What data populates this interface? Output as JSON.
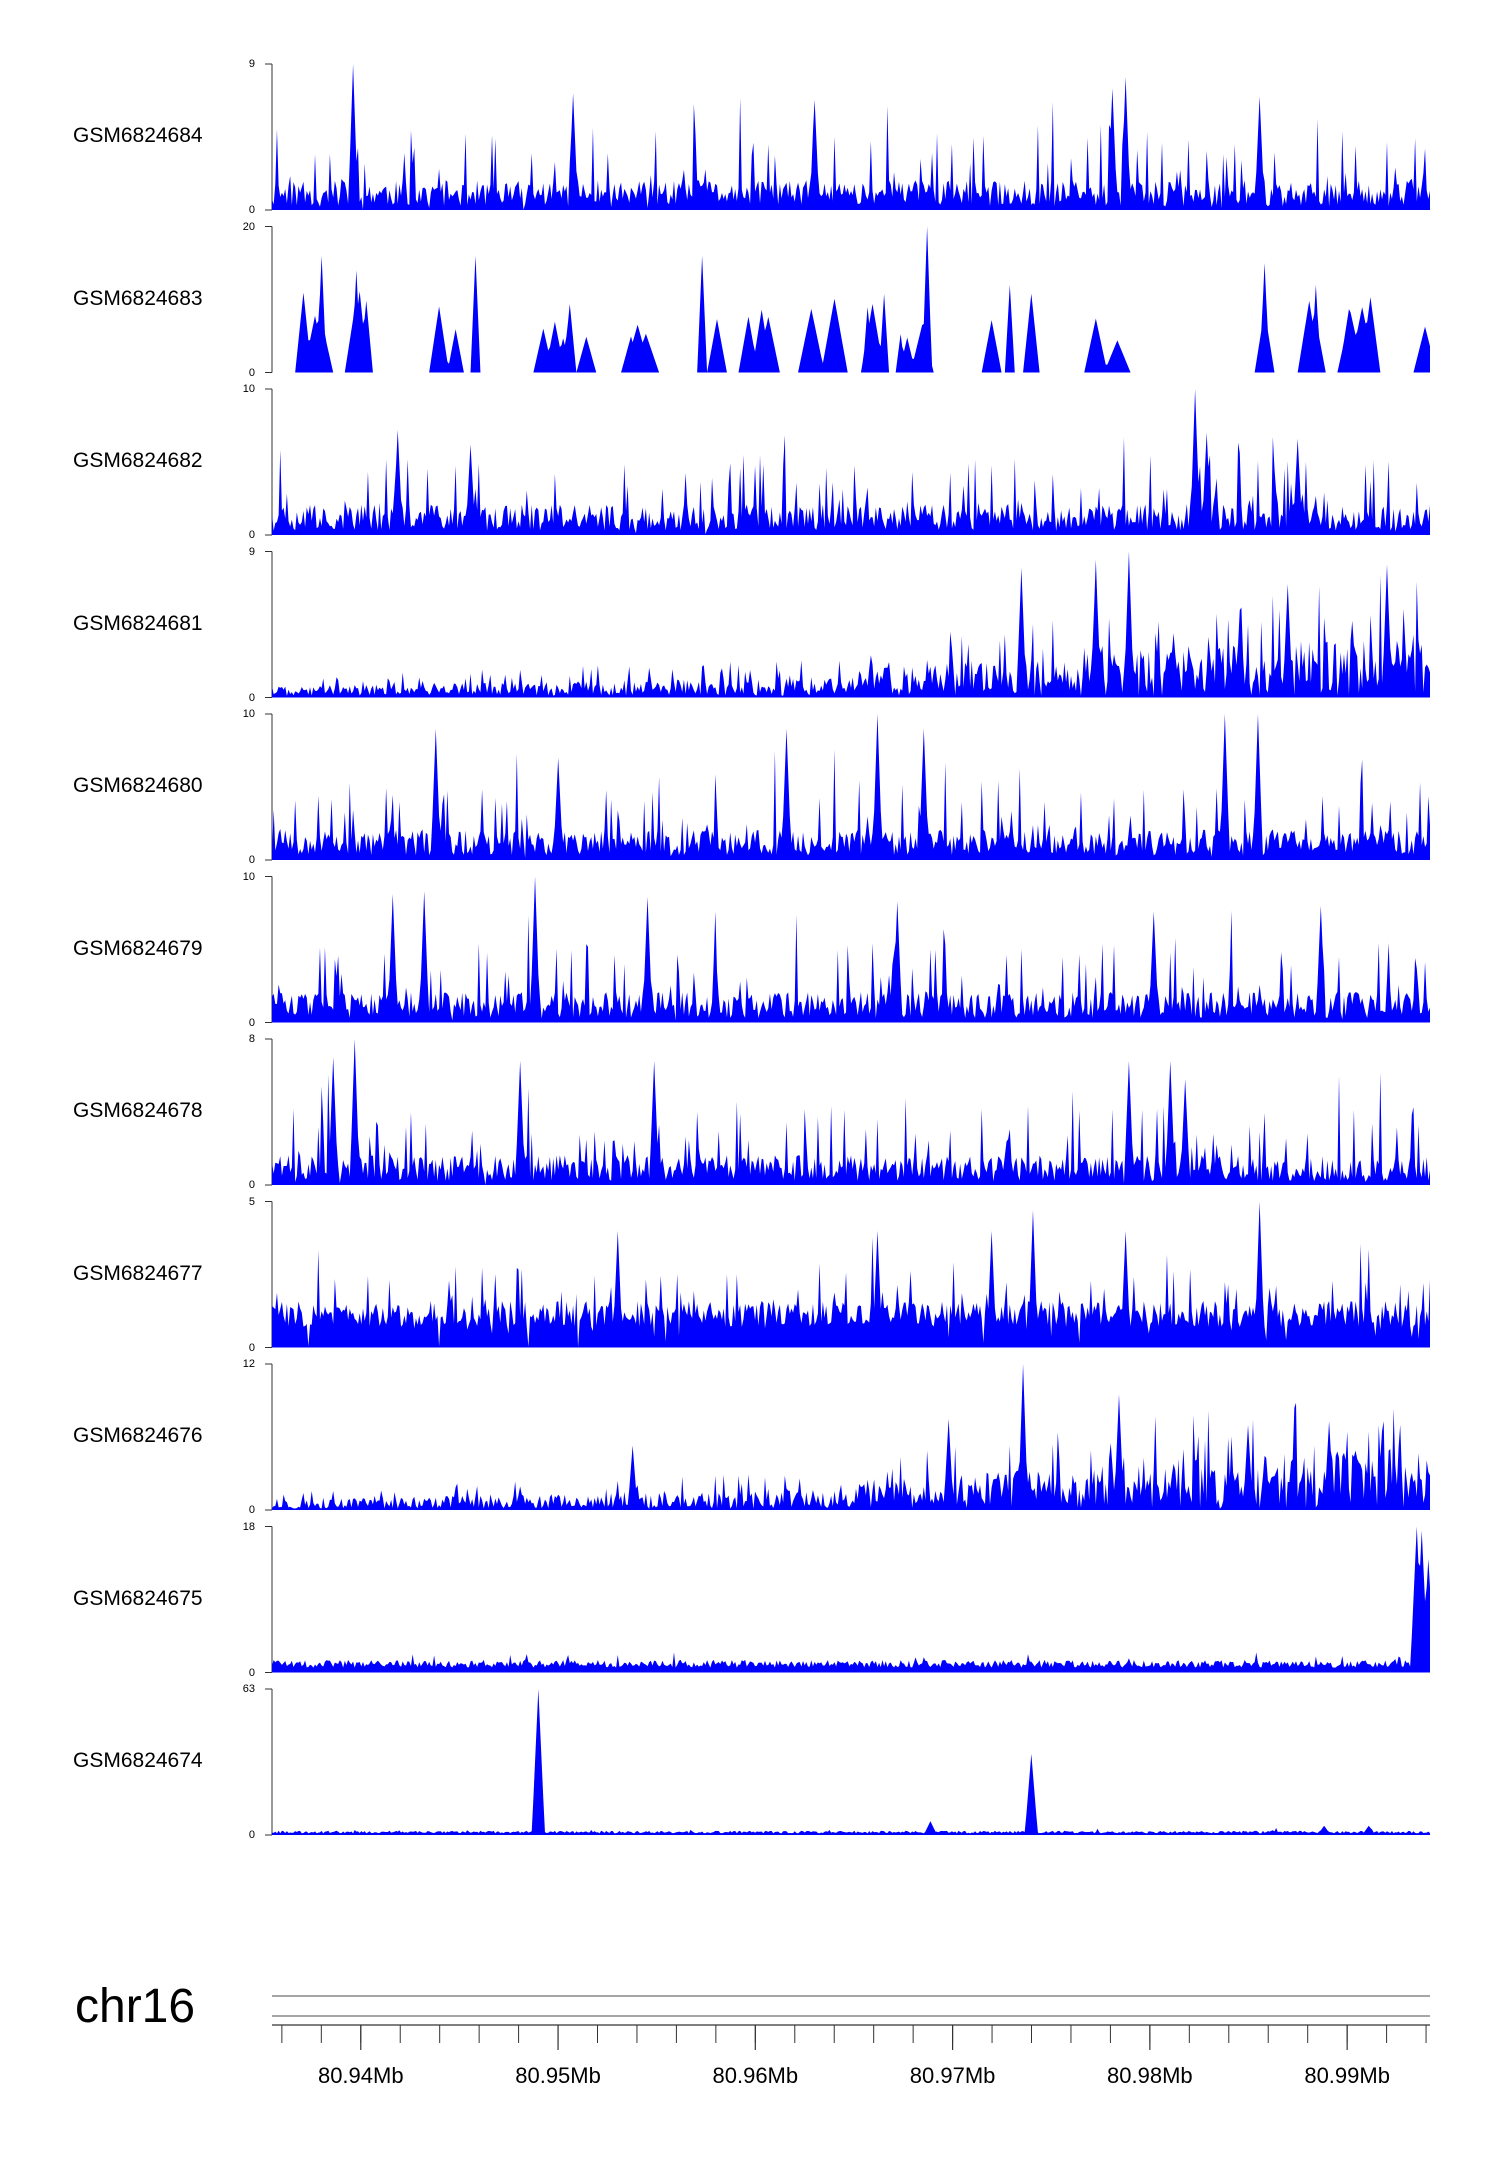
{
  "chart_data": {
    "type": "area",
    "chromosome": "chr16",
    "x_unit": "Mb",
    "xlim": [
      80.9355,
      80.9942
    ],
    "x_ticks": [
      80.94,
      80.95,
      80.96,
      80.97,
      80.98,
      80.99
    ],
    "x_tick_labels": [
      "80.94Mb",
      "80.95Mb",
      "80.96Mb",
      "80.97Mb",
      "80.98Mb",
      "80.99Mb"
    ],
    "minor_tick_step": 0.002,
    "color": "#0000ff",
    "tracks": [
      {
        "name": "GSM6824684",
        "ymin_label": "0",
        "ymax_label": "9",
        "ylim": [
          0,
          9
        ],
        "profile": "uniform_spiky",
        "seed": 11,
        "base": 0.22,
        "peaks": [
          [
            80.9396,
            9
          ],
          [
            80.9508,
            7.2
          ],
          [
            80.963,
            6.8
          ],
          [
            80.9781,
            7.5
          ],
          [
            80.9788,
            8.2
          ],
          [
            80.9856,
            7.0
          ]
        ]
      },
      {
        "name": "GSM6824683",
        "ymin_label": "0",
        "ymax_label": "20",
        "ylim": [
          0,
          20
        ],
        "profile": "sparse_triangles",
        "seed": 23,
        "base": 0.0,
        "peaks": [
          [
            80.9687,
            20
          ],
          [
            80.9458,
            16
          ],
          [
            80.9573,
            16
          ],
          [
            80.938,
            16
          ],
          [
            80.9398,
            14
          ],
          [
            80.9858,
            15
          ],
          [
            80.9729,
            12
          ],
          [
            80.9884,
            12
          ]
        ]
      },
      {
        "name": "GSM6824682",
        "ymin_label": "0",
        "ymax_label": "10",
        "ylim": [
          0,
          10
        ],
        "profile": "uniform_spiky",
        "seed": 37,
        "base": 0.3,
        "peaks": [
          [
            80.9823,
            10
          ],
          [
            80.9419,
            7.2
          ],
          [
            80.9829,
            7.0
          ],
          [
            80.9875,
            6.6
          ],
          [
            80.9456,
            6.2
          ]
        ]
      },
      {
        "name": "GSM6824681",
        "ymin_label": "0",
        "ymax_label": "9",
        "ylim": [
          0,
          9
        ],
        "profile": "rising_right",
        "seed": 41,
        "base": 0.1,
        "peaks": [
          [
            80.9789,
            9
          ],
          [
            80.9773,
            8.5
          ],
          [
            80.9735,
            8.0
          ],
          [
            80.992,
            8.2
          ],
          [
            80.987,
            7.0
          ]
        ]
      },
      {
        "name": "GSM6824680",
        "ymin_label": "0",
        "ymax_label": "10",
        "ylim": [
          0,
          10
        ],
        "profile": "uniform_spiky",
        "seed": 53,
        "base": 0.3,
        "peaks": [
          [
            80.9838,
            10
          ],
          [
            80.9855,
            10
          ],
          [
            80.9662,
            10
          ],
          [
            80.9616,
            9.0
          ],
          [
            80.9438,
            9.0
          ],
          [
            80.9685,
            9.0
          ],
          [
            80.95,
            7.0
          ]
        ]
      },
      {
        "name": "GSM6824679",
        "ymin_label": "0",
        "ymax_label": "10",
        "ylim": [
          0,
          10
        ],
        "profile": "uniform_spiky",
        "seed": 61,
        "base": 0.3,
        "peaks": [
          [
            80.9488,
            10
          ],
          [
            80.9432,
            9
          ],
          [
            80.9416,
            8.8
          ],
          [
            80.9545,
            8.6
          ],
          [
            80.9672,
            8.3
          ],
          [
            80.9887,
            8.0
          ],
          [
            80.9802,
            7.6
          ]
        ]
      },
      {
        "name": "GSM6824678",
        "ymin_label": "0",
        "ymax_label": "8",
        "ylim": [
          0,
          8
        ],
        "profile": "uniform_spiky",
        "seed": 71,
        "base": 0.2,
        "peaks": [
          [
            80.9397,
            8
          ],
          [
            80.9386,
            7.0
          ],
          [
            80.9481,
            6.8
          ],
          [
            80.9549,
            6.8
          ],
          [
            80.9789,
            6.8
          ],
          [
            80.981,
            6.8
          ],
          [
            80.9818,
            5.8
          ]
        ]
      },
      {
        "name": "GSM6824677",
        "ymin_label": "0",
        "ymax_label": "5",
        "ylim": [
          0,
          5
        ],
        "profile": "uniform_spiky",
        "seed": 83,
        "base": 0.7,
        "peaks": [
          [
            80.9856,
            5
          ],
          [
            80.953,
            4.0
          ],
          [
            80.9741,
            4.7
          ],
          [
            80.9788,
            4.0
          ],
          [
            80.9662,
            4.0
          ],
          [
            80.972,
            4.0
          ]
        ]
      },
      {
        "name": "GSM6824676",
        "ymin_label": "0",
        "ymax_label": "12",
        "ylim": [
          0,
          12
        ],
        "profile": "rising_right",
        "seed": 97,
        "base": 0.1,
        "peaks": [
          [
            80.9736,
            12
          ],
          [
            80.9784,
            9.5
          ],
          [
            80.9698,
            7.5
          ],
          [
            80.9891,
            7.3
          ],
          [
            80.985,
            7.0
          ],
          [
            80.9538,
            5.3
          ]
        ]
      },
      {
        "name": "GSM6824675",
        "ymin_label": "0",
        "ymax_label": "18",
        "ylim": [
          0,
          18
        ],
        "profile": "flat_with_end_spike",
        "seed": 101,
        "base": 0.6,
        "peaks": [
          [
            80.9935,
            18
          ],
          [
            80.9938,
            17.5
          ],
          [
            80.9941,
            14
          ]
        ]
      },
      {
        "name": "GSM6824674",
        "ymin_label": "0",
        "ymax_label": "63",
        "ylim": [
          0,
          63
        ],
        "profile": "flat_with_end_spike",
        "seed": 113,
        "base": 0.7,
        "peaks": [
          [
            80.949,
            63
          ],
          [
            80.974,
            35
          ],
          [
            80.9689,
            6
          ],
          [
            80.9911,
            4
          ],
          [
            80.9888,
            4
          ]
        ]
      }
    ]
  }
}
